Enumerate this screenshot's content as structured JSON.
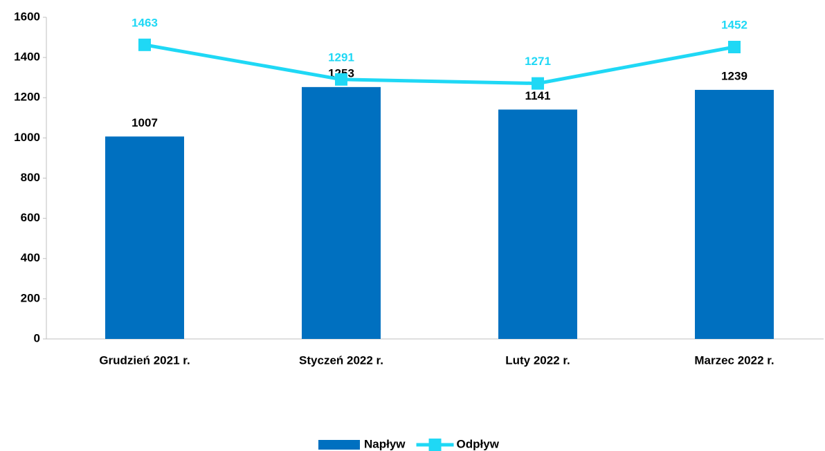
{
  "chart_data": {
    "type": "bar",
    "categories": [
      "Grudzień 2021 r.",
      "Styczeń 2022 r.",
      "Luty 2022 r.",
      "Marzec 2022 r."
    ],
    "series": [
      {
        "name": "Napływ",
        "type": "bar",
        "color": "#0070c0",
        "values": [
          1007,
          1253,
          1141,
          1239
        ]
      },
      {
        "name": "Odpływ",
        "type": "line",
        "color": "#1fd8f5",
        "values": [
          1463,
          1291,
          1271,
          1452
        ]
      }
    ],
    "ylim": [
      0,
      1600
    ],
    "yticks": [
      0,
      200,
      400,
      600,
      800,
      1000,
      1200,
      1400,
      1600
    ],
    "grid": false,
    "legend": "bottom"
  }
}
